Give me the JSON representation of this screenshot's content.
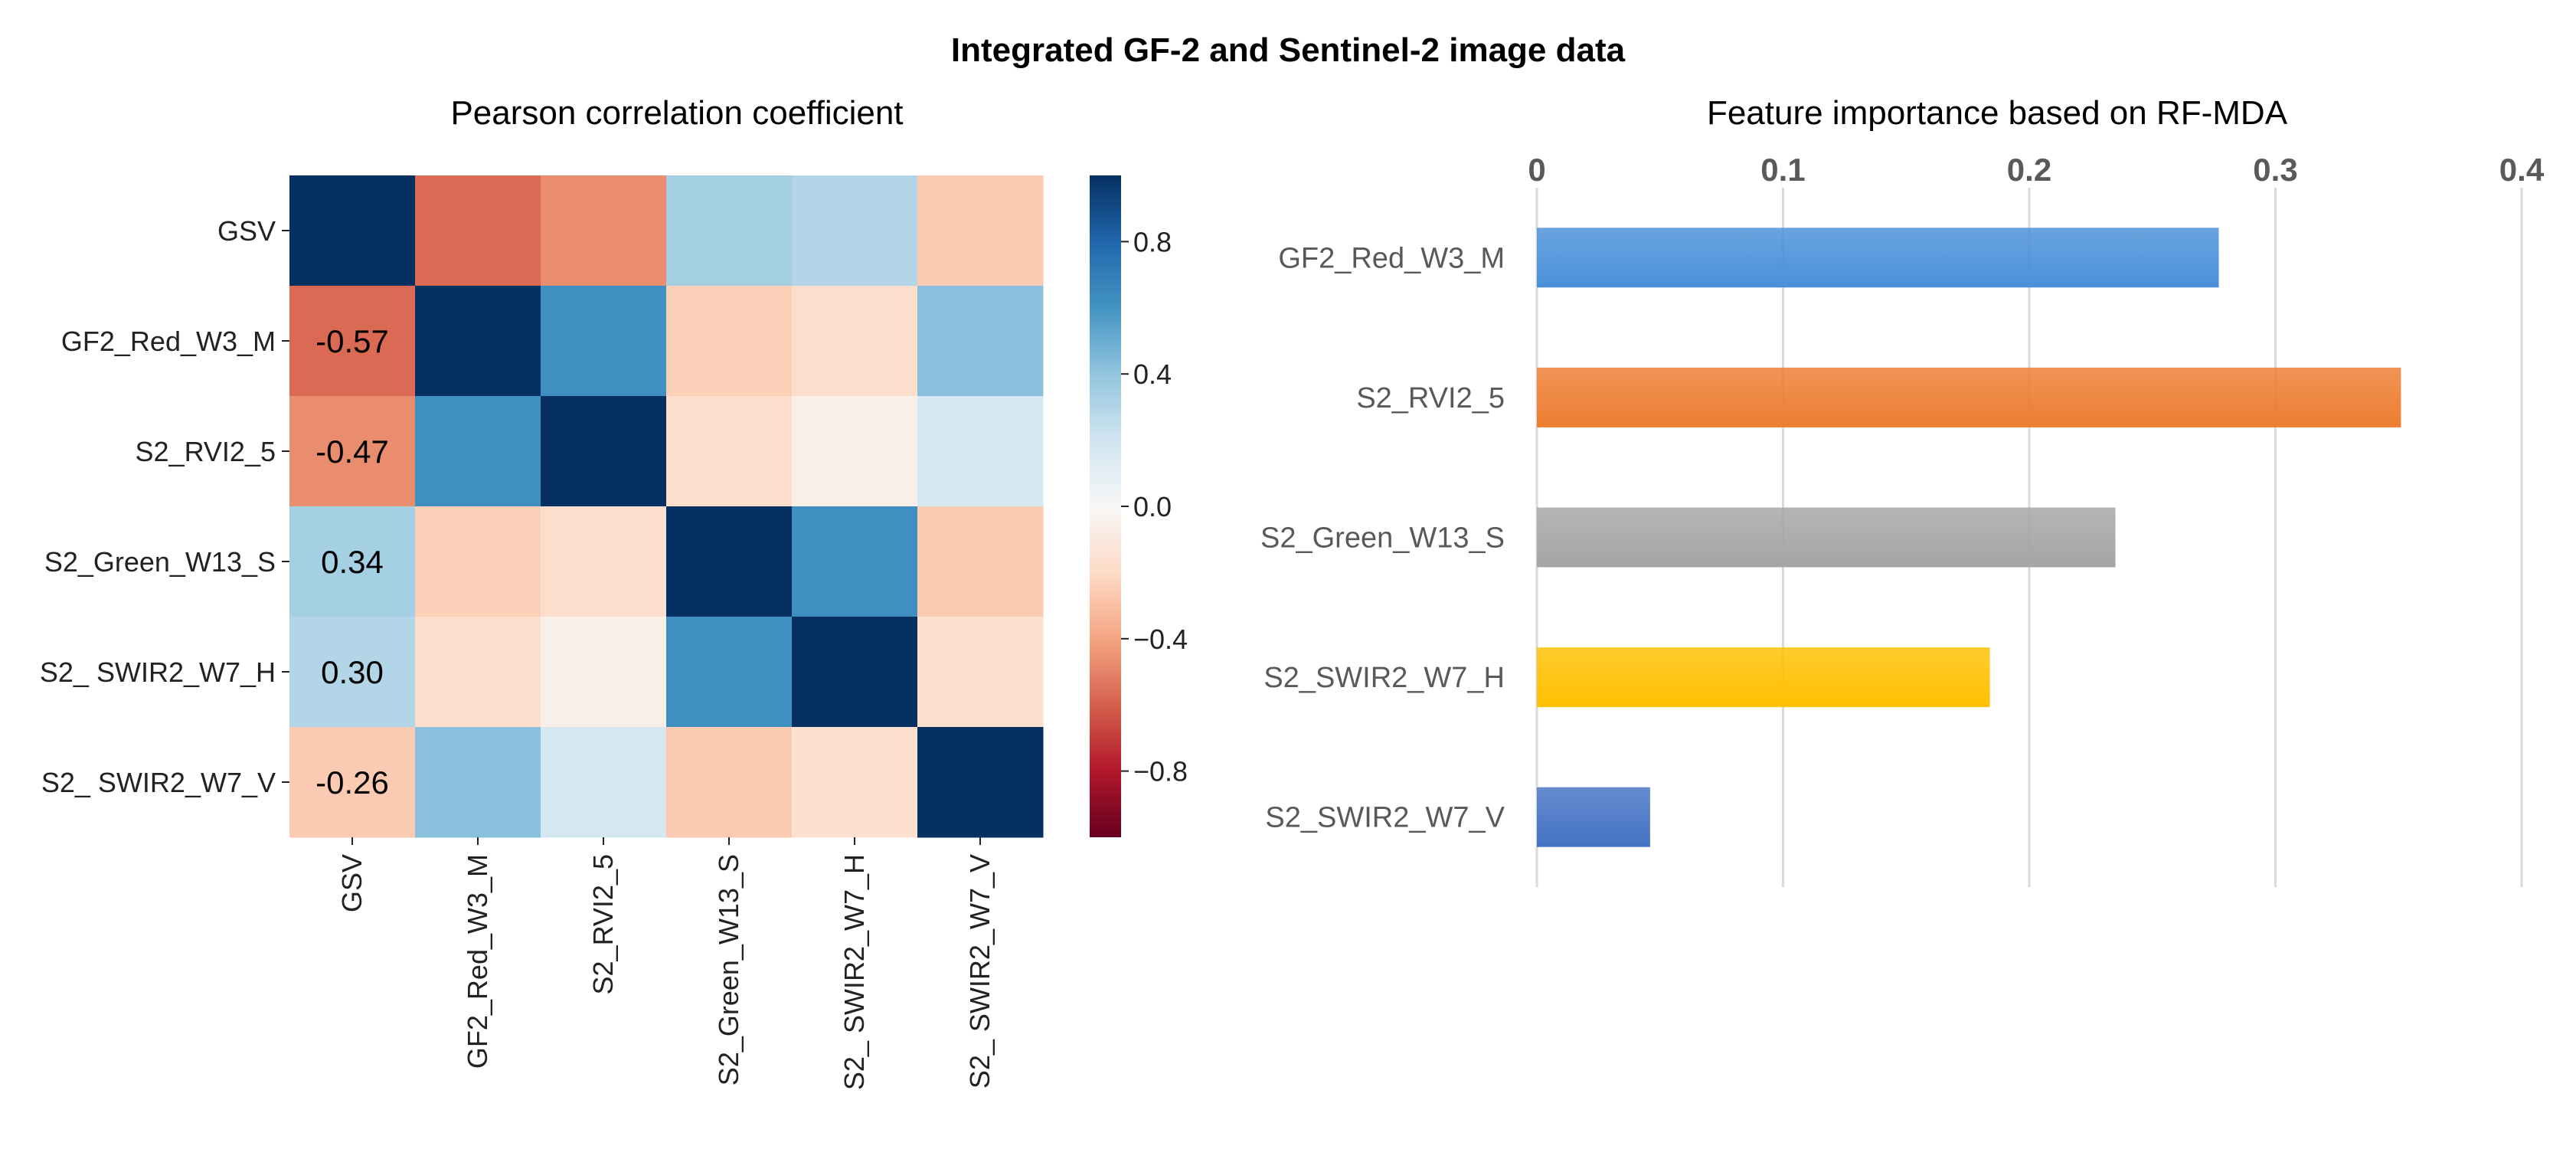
{
  "figure_title": "Integrated GF-2 and Sentinel-2 image data",
  "chart_data": [
    {
      "type": "heatmap",
      "title": "Pearson correlation coefficient",
      "row_labels": [
        "GSV",
        "GF2_Red_W3_M",
        "S2_RVI2_5",
        "S2_Green_W13_S",
        "S2_ SWIR2_W7_H",
        "S2_ SWIR2_W7_V"
      ],
      "col_labels": [
        "GSV",
        "GF2_Red_W3_M",
        "S2_RVI2_5",
        "S2_Green_W13_S",
        "S2_ SWIR2_W7_H",
        "S2_ SWIR2_W7_V"
      ],
      "matrix": [
        [
          1.0,
          -0.57,
          -0.47,
          0.34,
          0.3,
          -0.26
        ],
        [
          -0.57,
          1.0,
          0.62,
          -0.24,
          -0.18,
          0.42
        ],
        [
          -0.47,
          0.62,
          1.0,
          -0.18,
          -0.06,
          0.18
        ],
        [
          0.34,
          -0.24,
          -0.18,
          1.0,
          0.62,
          -0.26
        ],
        [
          0.3,
          -0.18,
          -0.06,
          0.62,
          1.0,
          -0.16
        ],
        [
          -0.26,
          0.42,
          0.18,
          -0.26,
          -0.16,
          1.0
        ]
      ],
      "annotations": [
        {
          "row": 1,
          "col": 0,
          "text": "-0.57"
        },
        {
          "row": 2,
          "col": 0,
          "text": "-0.47"
        },
        {
          "row": 3,
          "col": 0,
          "text": "0.34"
        },
        {
          "row": 4,
          "col": 0,
          "text": "0.30"
        },
        {
          "row": 5,
          "col": 0,
          "text": "-0.26"
        }
      ],
      "vmin": -1.0,
      "vmax": 1.0,
      "colormap": "RdBu",
      "colorbar_ticks": [
        0.8,
        0.4,
        0.0,
        -0.4,
        -0.8
      ],
      "colorbar_tick_labels": [
        "0.8",
        "0.4",
        "0.0",
        "−0.4",
        "−0.8"
      ]
    },
    {
      "type": "bar",
      "orientation": "horizontal",
      "title": "Feature importance based on RF-MDA",
      "categories": [
        "GF2_Red_W3_M",
        "S2_RVI2_5",
        "S2_Green_W13_S",
        "S2_SWIR2_W7_H",
        "S2_SWIR2_W7_V"
      ],
      "values": [
        0.277,
        0.351,
        0.235,
        0.184,
        0.046
      ],
      "colors": [
        "#4a90d9",
        "#ed7d31",
        "#a5a5a5",
        "#ffc000",
        "#4472c4"
      ],
      "xlim": [
        0,
        0.4
      ],
      "xticks": [
        0,
        0.1,
        0.2,
        0.3,
        0.4
      ],
      "xtick_labels": [
        "0",
        "0.1",
        "0.2",
        "0.3",
        "0.4"
      ],
      "grid": true,
      "axis_position": "top"
    }
  ]
}
